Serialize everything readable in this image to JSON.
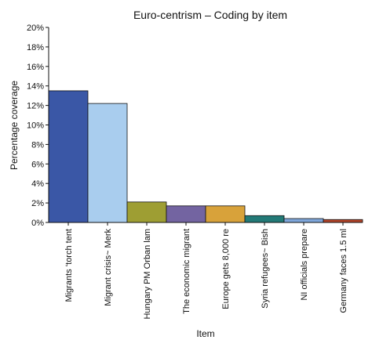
{
  "chart_data": {
    "type": "bar",
    "title": "Euro-centrism – Coding by item",
    "xlabel": "Item",
    "ylabel": "Percentage coverage",
    "ylim": [
      0,
      20
    ],
    "yticks": [
      "0%",
      "2%",
      "4%",
      "6%",
      "8%",
      "10%",
      "12%",
      "14%",
      "16%",
      "18%",
      "20%"
    ],
    "grid": false,
    "categories": [
      "Migrants ‘torch tent",
      "Migrant crisis~ Merk",
      "Hungary PM Orban lam",
      "The economic migrant",
      "Europe gets 8,000 re",
      "Syria refugees~ Bish",
      "NI officials prepare",
      "Germany faces 1.5 ml"
    ],
    "values": [
      13.5,
      12.2,
      2.1,
      1.7,
      1.7,
      0.7,
      0.4,
      0.3
    ],
    "colors": [
      "#3a57a6",
      "#a9cdee",
      "#9e9e33",
      "#7364a1",
      "#d8a23a",
      "#237a77",
      "#7fa6da",
      "#b5452a"
    ]
  }
}
